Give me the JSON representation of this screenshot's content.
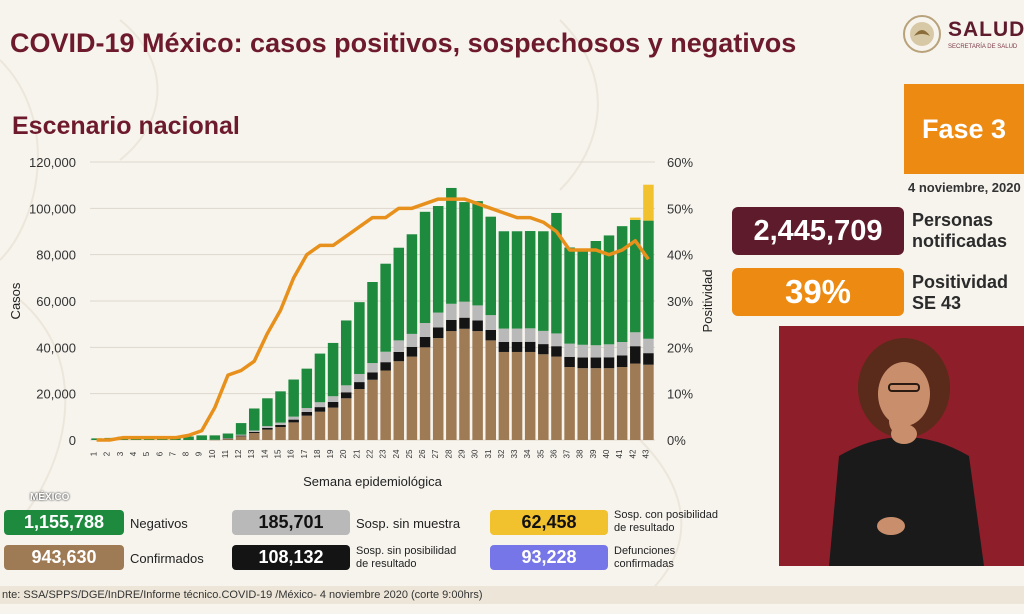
{
  "title": "COVID-19 México: casos positivos, sospechosos y negativos",
  "subtitle": "Escenario nacional",
  "logo": {
    "name": "SALUD",
    "tagline": "SECRETARÍA DE SALUD"
  },
  "phase": "Fase 3",
  "date": "4 noviembre, 2020",
  "stats": {
    "notified_value": "2,445,709",
    "notified_label_1": "Personas",
    "notified_label_2": "notificadas",
    "positivity_value": "39%",
    "positivity_label_1": "Positividad",
    "positivity_label_2": "SE 43"
  },
  "legend": {
    "negatives_value": "1,155,788",
    "negatives_label": "Negativos",
    "confirmed_value": "943,630",
    "confirmed_label": "Confirmados",
    "no_sample_value": "185,701",
    "no_sample_label": "Sosp. sin muestra",
    "no_result_value": "108,132",
    "no_result_label_1": "Sosp. sin posibilidad",
    "no_result_label_2": "de resultado",
    "possible_result_value": "62,458",
    "possible_result_label_1": "Sosp. con posibilidad",
    "possible_result_label_2": "de resultado",
    "deaths_value": "93,228",
    "deaths_label_1": "Defunciones",
    "deaths_label_2": "confirmadas"
  },
  "watermark": "MÉXICO",
  "footer": "nte: SSA/SPPS/DGE/InDRE/Informe técnico.COVID-19 /México- 4 noviembre 2020 (corte 9:00hrs)",
  "colors": {
    "title": "#6d1a2c",
    "confirmed": "#9e7b55",
    "no_result": "#141414",
    "no_sample": "#b9b9b9",
    "negatives": "#1e8a3e",
    "possible_result": "#f2c12e",
    "positivity_line": "#e8901c",
    "deaths": "#7676e8",
    "phase": "#ec8a12",
    "notified": "#5e1b2b"
  },
  "chart_data": {
    "type": "bar",
    "stacked": true,
    "xlabel": "Semana epidemiológica",
    "ylabel": "Casos",
    "y2label": "Positividad",
    "ylim": [
      0,
      120000
    ],
    "y2lim": [
      0,
      60
    ],
    "yticks": [
      "0",
      "20,000",
      "40,000",
      "60,000",
      "80,000",
      "100,000",
      "120,000"
    ],
    "y2ticks": [
      "0%",
      "10%",
      "20%",
      "30%",
      "40%",
      "50%",
      "60%"
    ],
    "categories": [
      "1",
      "2",
      "3",
      "4",
      "5",
      "6",
      "7",
      "8",
      "9",
      "10",
      "11",
      "12",
      "13",
      "14",
      "15",
      "16",
      "17",
      "18",
      "19",
      "20",
      "21",
      "22",
      "23",
      "24",
      "25",
      "26",
      "27",
      "28",
      "29",
      "30",
      "31",
      "32",
      "33",
      "34",
      "35",
      "36",
      "37",
      "38",
      "39",
      "40",
      "41",
      "42",
      "43"
    ],
    "series": [
      {
        "name": "Confirmados",
        "color": "#9e7b55",
        "values": [
          0,
          0,
          0,
          0,
          0,
          0,
          0,
          0,
          0,
          100,
          500,
          1600,
          3000,
          4500,
          5600,
          7600,
          10500,
          12200,
          14000,
          18000,
          22000,
          26000,
          30000,
          34000,
          36000,
          40000,
          44000,
          47000,
          48000,
          47000,
          43000,
          38000,
          38000,
          38000,
          37000,
          36000,
          31500,
          31000,
          31000,
          31000,
          31500,
          33000,
          32500
        ]
      },
      {
        "name": "Sosp. sin posibilidad de resultado",
        "color": "#141414",
        "values": [
          0,
          0,
          0,
          0,
          0,
          0,
          0,
          0,
          0,
          0,
          100,
          300,
          500,
          700,
          900,
          1200,
          1600,
          2000,
          2400,
          2600,
          3000,
          3200,
          3600,
          4000,
          4200,
          4500,
          4600,
          4800,
          4800,
          4600,
          4500,
          4300,
          4300,
          4400,
          4400,
          4500,
          4400,
          4600,
          4600,
          4700,
          5000,
          7500,
          5000
        ]
      },
      {
        "name": "Sosp. sin muestra",
        "color": "#b9b9b9",
        "values": [
          0,
          0,
          0,
          0,
          0,
          0,
          0,
          0,
          0,
          0,
          200,
          400,
          600,
          800,
          1000,
          1300,
          1700,
          2100,
          2500,
          3000,
          3500,
          4000,
          4500,
          5000,
          5600,
          6000,
          6400,
          7000,
          6900,
          6500,
          6400,
          5800,
          5800,
          5800,
          5700,
          5500,
          5700,
          5500,
          5300,
          5600,
          5800,
          6000,
          6200
        ]
      },
      {
        "name": "Negativos",
        "color": "#1e8a3e",
        "values": [
          700,
          900,
          1400,
          1600,
          1500,
          1400,
          1400,
          1500,
          2000,
          1900,
          2000,
          5000,
          9500,
          12000,
          13500,
          16000,
          17000,
          21000,
          23000,
          28000,
          31000,
          35000,
          38000,
          40000,
          43000,
          48000,
          46000,
          50000,
          43000,
          45000,
          42500,
          42000,
          42000,
          42000,
          43000,
          52000,
          41500,
          41000,
          45000,
          47000,
          50000,
          48500,
          51000
        ]
      },
      {
        "name": "Sosp. con posibilidad de resultado",
        "color": "#f2c12e",
        "values": [
          0,
          0,
          0,
          0,
          0,
          0,
          0,
          0,
          0,
          0,
          0,
          0,
          0,
          0,
          0,
          0,
          0,
          0,
          0,
          0,
          0,
          0,
          0,
          0,
          0,
          0,
          0,
          0,
          0,
          0,
          0,
          0,
          0,
          0,
          0,
          0,
          0,
          0,
          0,
          0,
          0,
          1000,
          15500
        ]
      }
    ],
    "line": {
      "name": "Positividad",
      "axis": "right",
      "color": "#e8901c",
      "values": [
        0,
        0,
        0.5,
        0.5,
        0.5,
        0.5,
        0.5,
        1,
        2,
        7,
        14,
        15,
        17,
        23,
        28,
        35,
        40,
        42,
        42,
        44,
        46,
        48,
        48,
        50,
        50,
        51,
        52,
        52,
        52,
        51,
        50,
        49,
        48,
        48,
        47,
        45,
        41,
        41,
        41,
        40,
        41,
        43,
        39
      ]
    }
  }
}
